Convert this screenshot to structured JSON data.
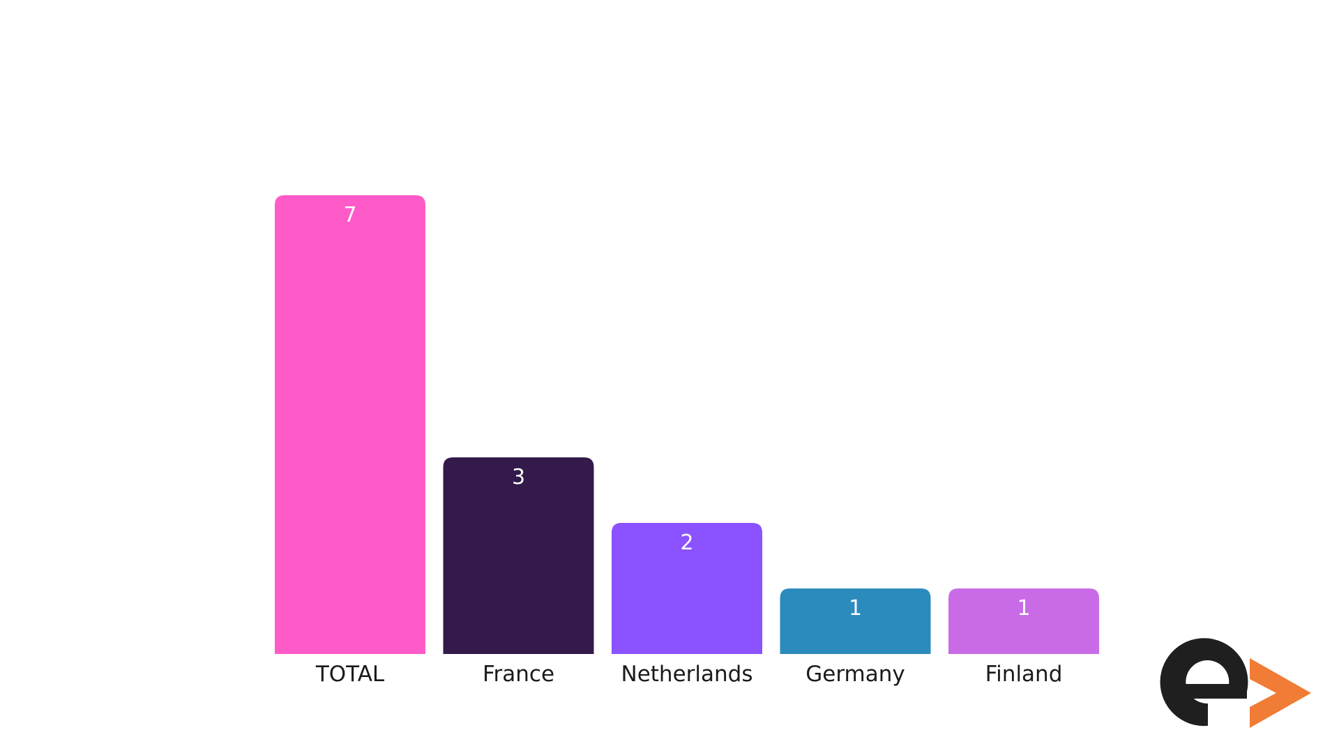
{
  "chart_data": {
    "type": "bar",
    "categories": [
      "TOTAL",
      "France",
      "Netherlands",
      "Germany",
      "Finland"
    ],
    "values": [
      7,
      3,
      2,
      1,
      1
    ],
    "colors": [
      "#ff5bc8",
      "#331a4a",
      "#8b52ff",
      "#2b8bbd",
      "#c96be6"
    ],
    "title": "",
    "xlabel": "",
    "ylabel": "",
    "ylim": [
      0,
      7
    ],
    "grid": false,
    "legend": "none",
    "data_labels": "inside-top",
    "value_label_color": "#ffffff"
  },
  "logo": {
    "name": "e-arrow-logo",
    "colors": {
      "letter": "#1f1f1f",
      "arrow": "#f07c35"
    }
  }
}
